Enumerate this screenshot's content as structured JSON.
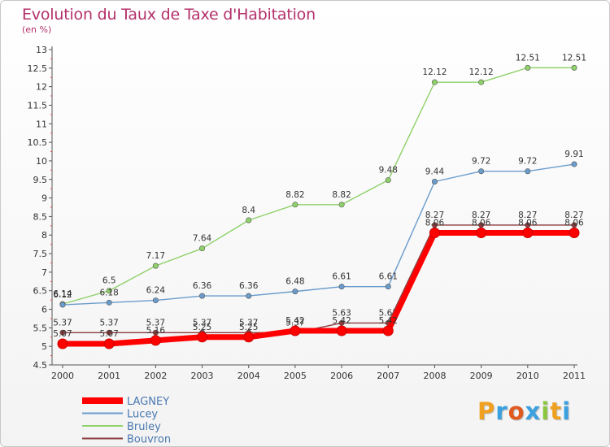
{
  "chart": {
    "title": "Evolution du Taux de Taxe d'Habitation",
    "subtitle": "(en %)"
  },
  "logo": {
    "letters": [
      "P",
      "r",
      "o",
      "x",
      "i",
      "t",
      "i"
    ],
    "colors": [
      "#f0a020",
      "#3aa0e0",
      "#e05a20",
      "#3aa0e0",
      "#8cc63f",
      "#f0a020",
      "#3aa0e0"
    ]
  },
  "chart_data": {
    "type": "line",
    "title": "Evolution du Taux de Taxe d'Habitation",
    "subtitle": "(en %)",
    "xlabel": "",
    "ylabel": "",
    "x": [
      "2000",
      "2001",
      "2002",
      "2003",
      "2004",
      "2005",
      "2006",
      "2007",
      "2008",
      "2009",
      "2010",
      "2011"
    ],
    "ylim": [
      4.5,
      13
    ],
    "yticks": [
      "4.5",
      "5",
      "5.5",
      "6",
      "6.5",
      "7",
      "7.5",
      "8",
      "8.5",
      "9",
      "9.5",
      "10",
      "10.5",
      "11",
      "11.5",
      "12",
      "12.5",
      "13"
    ],
    "grid": false,
    "legend_position": "bottom-left",
    "series": [
      {
        "name": "LAGNEY",
        "color": "#ff0000",
        "values": [
          5.07,
          5.07,
          5.16,
          5.25,
          5.25,
          5.42,
          5.42,
          5.42,
          8.06,
          8.06,
          8.06,
          8.06
        ],
        "labels": [
          "5.07",
          "5.07",
          "5.16",
          "5.25",
          "5.25",
          "5.42",
          "5.42",
          "5.42",
          "8.06",
          "8.06",
          "8.06",
          "8.06"
        ]
      },
      {
        "name": "Lucey",
        "color": "#6a9ccc",
        "values": [
          6.12,
          6.18,
          6.24,
          6.36,
          6.36,
          6.48,
          6.61,
          6.61,
          9.44,
          9.72,
          9.72,
          9.91
        ],
        "labels": [
          "6.12",
          "6.18",
          "6.24",
          "6.36",
          "6.36",
          "6.48",
          "6.61",
          "6.61",
          "9.44",
          "9.72",
          "9.72",
          "9.91"
        ]
      },
      {
        "name": "Bruley",
        "color": "#8fd16a",
        "values": [
          6.14,
          6.5,
          7.17,
          7.64,
          8.4,
          8.82,
          8.82,
          9.48,
          12.12,
          12.12,
          12.51,
          12.51
        ],
        "labels": [
          "6.14",
          "6.5",
          "7.17",
          "7.64",
          "8.4",
          "8.82",
          "8.82",
          "9.48",
          "12.12",
          "12.12",
          "12.51",
          "12.51"
        ]
      },
      {
        "name": "Bouvron",
        "color": "#8b3c3c",
        "values": [
          5.37,
          5.37,
          5.37,
          5.37,
          5.37,
          5.37,
          5.63,
          5.63,
          8.27,
          8.27,
          8.27,
          8.27
        ],
        "labels": [
          "5.37",
          "5.37",
          "5.37",
          "5.37",
          "5.37",
          "5.37",
          "5.63",
          "5.63",
          "8.27",
          "8.27",
          "8.27",
          "8.27"
        ]
      }
    ]
  }
}
